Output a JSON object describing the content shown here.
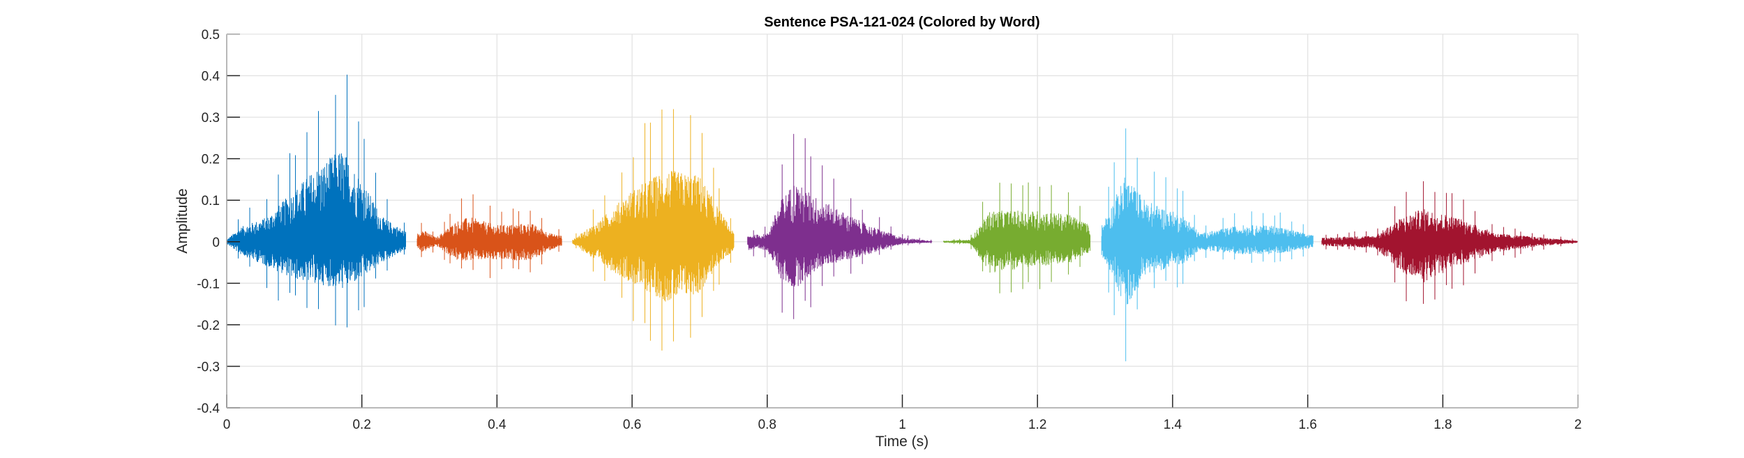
{
  "chart_data": {
    "type": "line",
    "title": "Sentence PSA-121-024 (Colored by Word)",
    "xlabel": "Time (s)",
    "ylabel": "Amplitude",
    "xlim": [
      0,
      2
    ],
    "ylim": [
      -0.4,
      0.5
    ],
    "xticks": [
      "0",
      "0.2",
      "0.4",
      "0.6",
      "0.8",
      "1",
      "1.2",
      "1.4",
      "1.6",
      "1.8",
      "2"
    ],
    "yticks": [
      "0.5",
      "0.4",
      "0.3",
      "0.2",
      "0.1",
      "0",
      "-0.1",
      "-0.2",
      "-0.3",
      "-0.4"
    ],
    "grid": true,
    "series": [
      {
        "name": "word-1",
        "color": "#0072BD",
        "envelope": [
          [
            0,
            0.01,
            -0.01
          ],
          [
            0.02,
            0.07,
            -0.06
          ],
          [
            0.06,
            0.12,
            -0.12
          ],
          [
            0.1,
            0.25,
            -0.18
          ],
          [
            0.13,
            0.35,
            -0.2
          ],
          [
            0.17,
            0.45,
            -0.23
          ],
          [
            0.2,
            0.3,
            -0.18
          ],
          [
            0.23,
            0.12,
            -0.1
          ],
          [
            0.265,
            0.05,
            -0.04
          ]
        ]
      },
      {
        "name": "word-2",
        "color": "#D95319",
        "envelope": [
          [
            0.282,
            0.04,
            -0.03
          ],
          [
            0.29,
            0.06,
            -0.05
          ],
          [
            0.31,
            0.02,
            -0.02
          ],
          [
            0.34,
            0.1,
            -0.09
          ],
          [
            0.36,
            0.12,
            -0.09
          ],
          [
            0.4,
            0.08,
            -0.09
          ],
          [
            0.45,
            0.09,
            -0.09
          ],
          [
            0.48,
            0.04,
            -0.04
          ],
          [
            0.496,
            0.03,
            -0.02
          ]
        ]
      },
      {
        "name": "word-3",
        "color": "#EDB120",
        "envelope": [
          [
            0.512,
            0.01,
            -0.01
          ],
          [
            0.55,
            0.1,
            -0.1
          ],
          [
            0.6,
            0.25,
            -0.2
          ],
          [
            0.65,
            0.35,
            -0.29
          ],
          [
            0.7,
            0.32,
            -0.25
          ],
          [
            0.73,
            0.15,
            -0.1
          ],
          [
            0.751,
            0.04,
            -0.04
          ]
        ]
      },
      {
        "name": "word-4",
        "color": "#7E2F8E",
        "envelope": [
          [
            0.771,
            0.03,
            -0.04
          ],
          [
            0.8,
            0.04,
            -0.04
          ],
          [
            0.82,
            0.2,
            -0.18
          ],
          [
            0.84,
            0.29,
            -0.23
          ],
          [
            0.88,
            0.2,
            -0.12
          ],
          [
            0.95,
            0.08,
            -0.06
          ],
          [
            1.0,
            0.02,
            -0.01
          ],
          [
            1.044,
            0.005,
            -0.005
          ]
        ]
      },
      {
        "name": "word-5",
        "color": "#77AC30",
        "envelope": [
          [
            1.061,
            0.005,
            -0.005
          ],
          [
            1.1,
            0.01,
            -0.01
          ],
          [
            1.13,
            0.15,
            -0.15
          ],
          [
            1.2,
            0.15,
            -0.12
          ],
          [
            1.25,
            0.13,
            -0.1
          ],
          [
            1.278,
            0.08,
            -0.05
          ]
        ]
      },
      {
        "name": "word-6",
        "color": "#4DBEEE",
        "envelope": [
          [
            1.295,
            0.08,
            -0.07
          ],
          [
            1.31,
            0.18,
            -0.15
          ],
          [
            1.33,
            0.32,
            -0.33
          ],
          [
            1.36,
            0.2,
            -0.16
          ],
          [
            1.42,
            0.12,
            -0.1
          ],
          [
            1.44,
            0.04,
            -0.04
          ],
          [
            1.5,
            0.08,
            -0.06
          ],
          [
            1.55,
            0.08,
            -0.06
          ],
          [
            1.608,
            0.03,
            -0.03
          ]
        ]
      },
      {
        "name": "word-7",
        "color": "#A2142F",
        "envelope": [
          [
            1.621,
            0.02,
            -0.02
          ],
          [
            1.7,
            0.03,
            -0.03
          ],
          [
            1.74,
            0.12,
            -0.15
          ],
          [
            1.77,
            0.16,
            -0.2
          ],
          [
            1.82,
            0.12,
            -0.12
          ],
          [
            1.88,
            0.04,
            -0.05
          ],
          [
            1.95,
            0.02,
            -0.02
          ],
          [
            2.0,
            0.005,
            -0.005
          ]
        ]
      }
    ]
  }
}
